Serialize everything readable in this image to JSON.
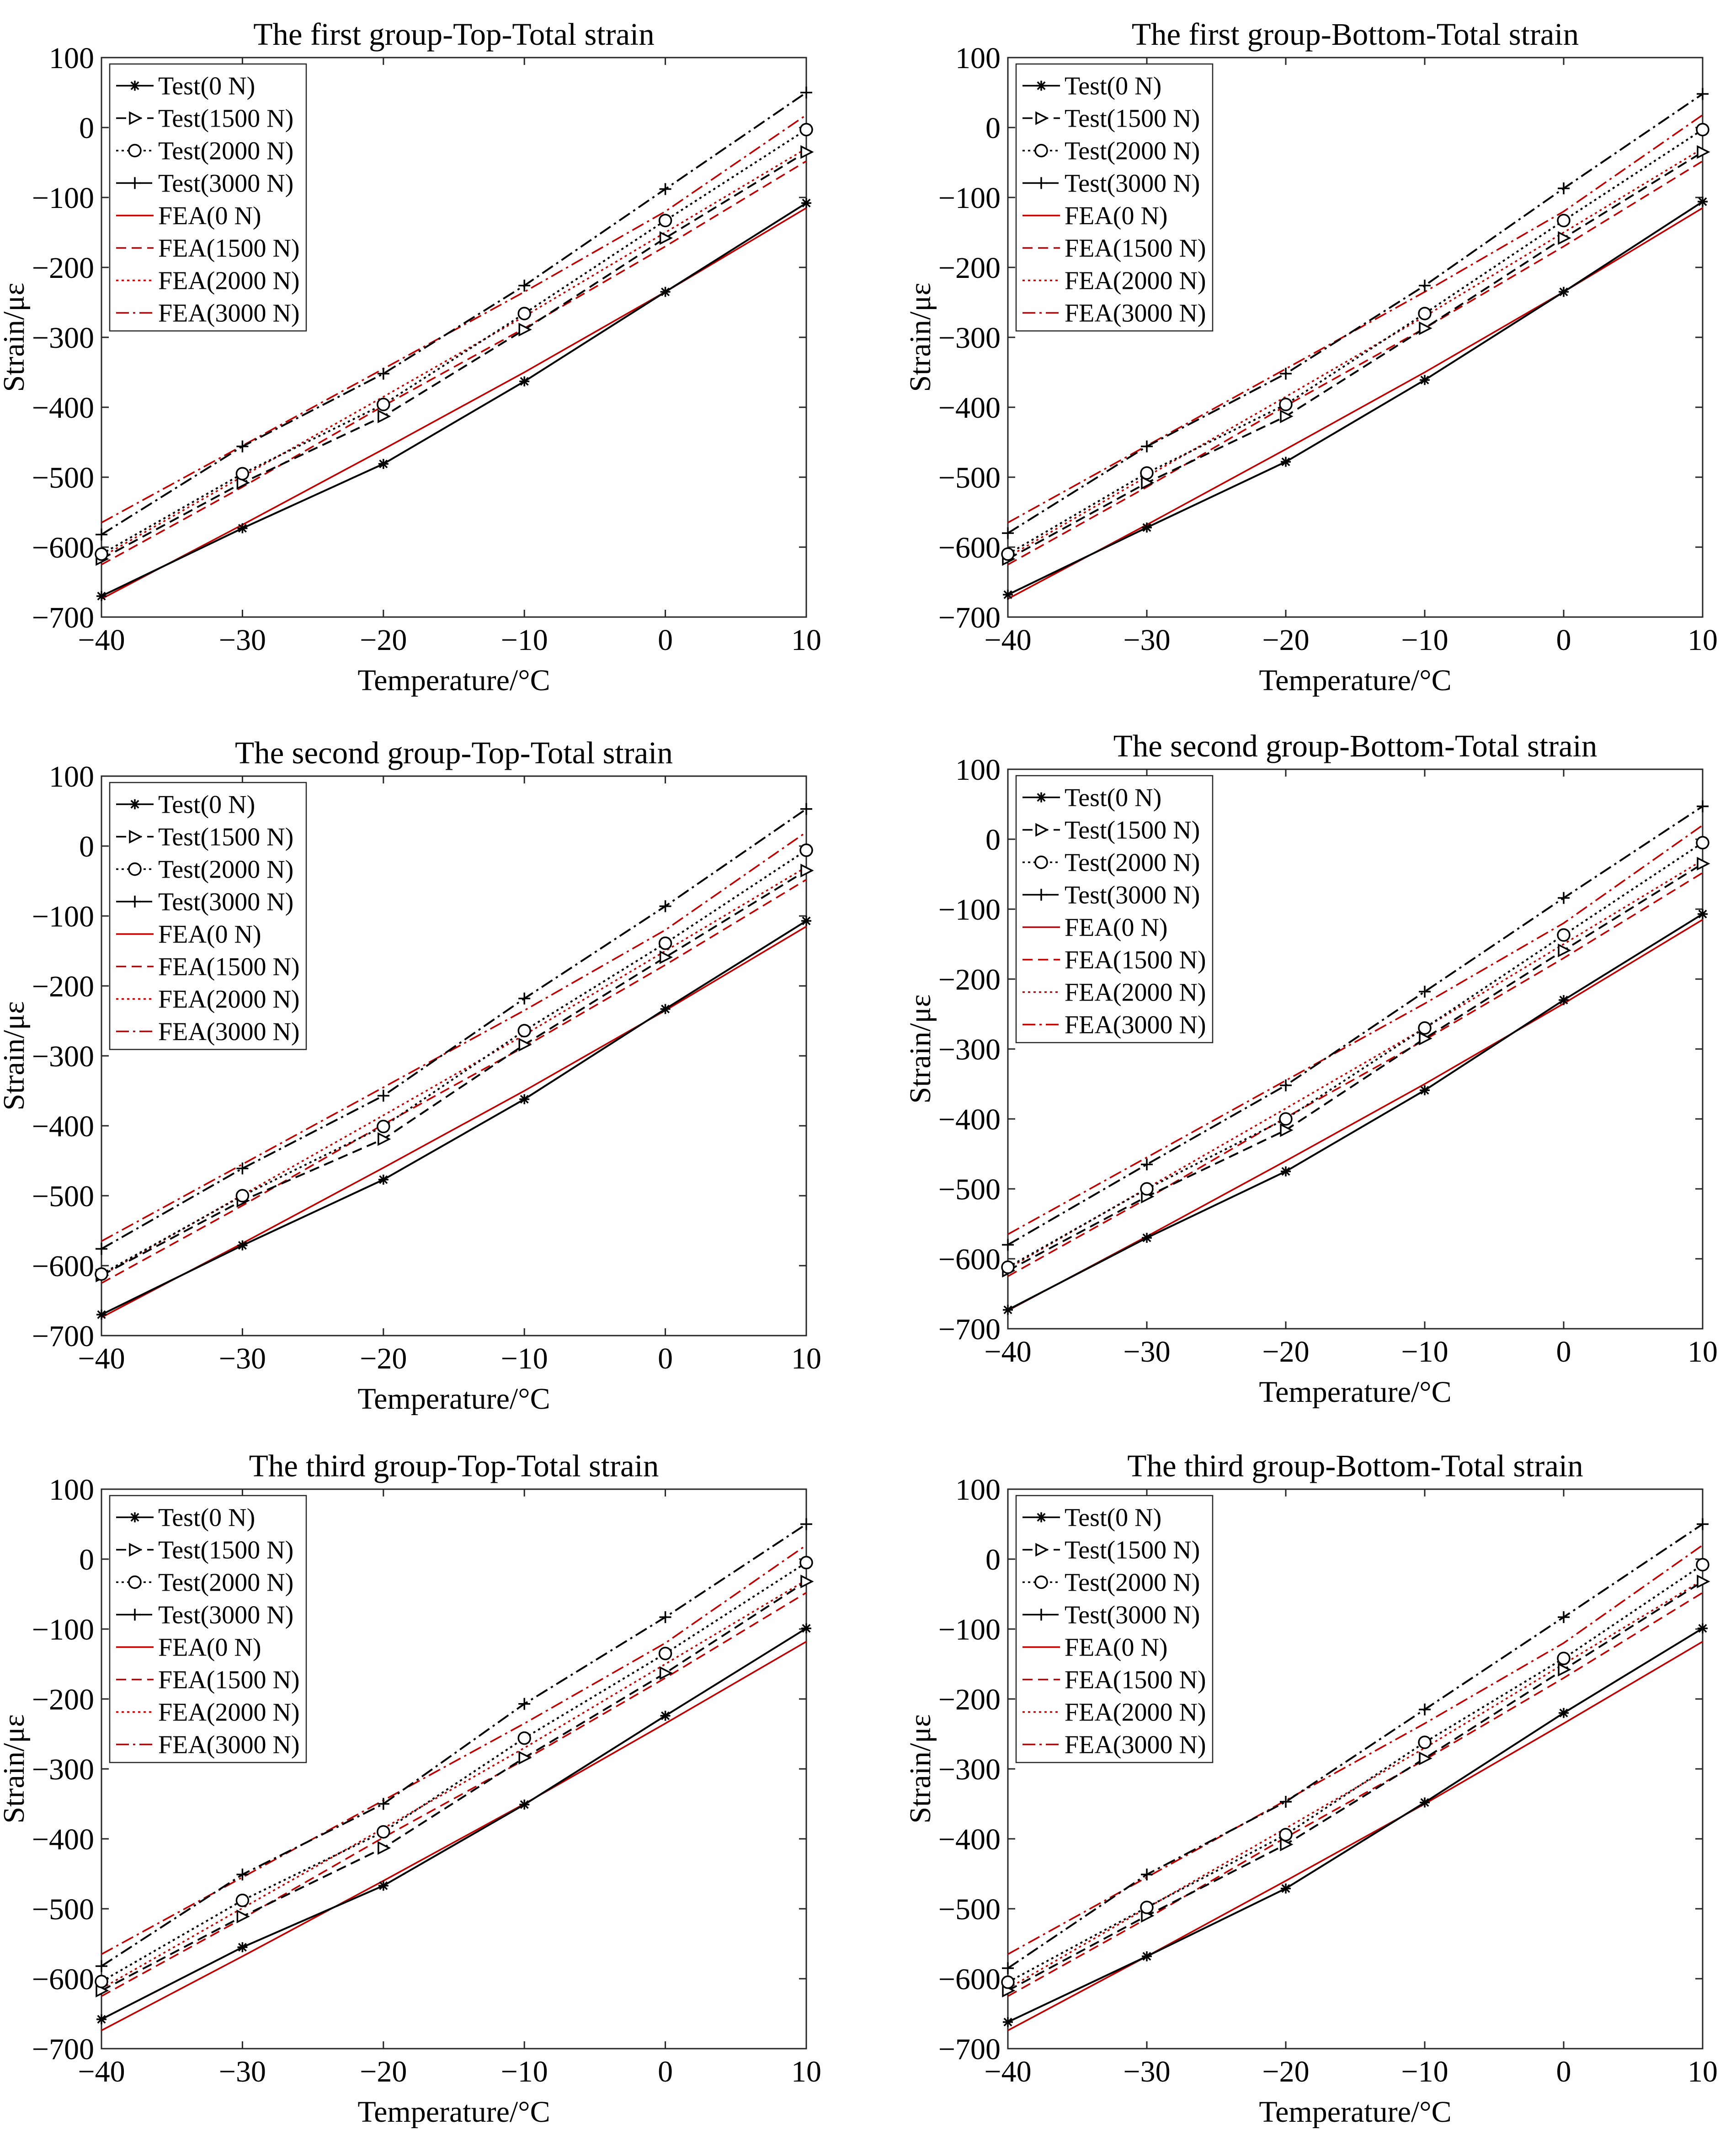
{
  "chart_data": [
    {
      "type": "line",
      "title": "The first group-Top-Total strain",
      "xlabel": "Temperature/°C",
      "ylabel": "Strain/με",
      "xlim": [
        -40,
        10
      ],
      "ylim": [
        -700,
        100
      ],
      "xticks": [
        "−40",
        "−30",
        "−20",
        "−10",
        "0",
        "10"
      ],
      "yticks": [
        "100",
        "0",
        "−100",
        "−200",
        "−300",
        "−400",
        "−500",
        "−600",
        "−700"
      ],
      "x": [
        -40,
        -30,
        -20,
        -10,
        0,
        10
      ],
      "legend_position": "top-left",
      "series": [
        {
          "name": "Test(0 N)",
          "values": [
            -670,
            -573,
            -481,
            -363,
            -235,
            -108
          ]
        },
        {
          "name": "Test(1500 N)",
          "values": [
            -617,
            -508,
            -413,
            -289,
            -158,
            -35
          ]
        },
        {
          "name": "Test(2000 N)",
          "values": [
            -610,
            -495,
            -396,
            -266,
            -133,
            -3
          ]
        },
        {
          "name": "Test(3000 N)",
          "values": [
            -582,
            -456,
            -352,
            -226,
            -88,
            50
          ]
        },
        {
          "name": "FEA(0 N)",
          "values": [
            -674,
            -568,
            -460,
            -350,
            -235,
            -115
          ]
        },
        {
          "name": "FEA(1500 N)",
          "values": [
            -625,
            -514,
            -398,
            -287,
            -170,
            -48
          ]
        },
        {
          "name": "FEA(2000 N)",
          "values": [
            -614,
            -499,
            -385,
            -270,
            -150,
            -30
          ]
        },
        {
          "name": "FEA(3000 N)",
          "values": [
            -565,
            -455,
            -345,
            -235,
            -120,
            18
          ]
        }
      ]
    },
    {
      "type": "line",
      "title": "The first group-Bottom-Total strain",
      "xlabel": "Temperature/°C",
      "ylabel": "Strain/με",
      "xlim": [
        -40,
        10
      ],
      "ylim": [
        -700,
        100
      ],
      "xticks": [
        "−40",
        "−30",
        "−20",
        "−10",
        "0",
        "10"
      ],
      "yticks": [
        "100",
        "0",
        "−100",
        "−200",
        "−300",
        "−400",
        "−500",
        "−600",
        "−700"
      ],
      "x": [
        -40,
        -30,
        -20,
        -10,
        0,
        10
      ],
      "legend_position": "top-left",
      "series": [
        {
          "name": "Test(0 N)",
          "values": [
            -668,
            -572,
            -478,
            -361,
            -235,
            -106
          ]
        },
        {
          "name": "Test(1500 N)",
          "values": [
            -617,
            -508,
            -413,
            -287,
            -158,
            -35
          ]
        },
        {
          "name": "Test(2000 N)",
          "values": [
            -610,
            -494,
            -396,
            -266,
            -133,
            -3
          ]
        },
        {
          "name": "Test(3000 N)",
          "values": [
            -580,
            -456,
            -352,
            -226,
            -87,
            48
          ]
        },
        {
          "name": "FEA(0 N)",
          "values": [
            -674,
            -568,
            -460,
            -350,
            -235,
            -115
          ]
        },
        {
          "name": "FEA(1500 N)",
          "values": [
            -625,
            -514,
            -398,
            -287,
            -170,
            -48
          ]
        },
        {
          "name": "FEA(2000 N)",
          "values": [
            -614,
            -499,
            -385,
            -270,
            -150,
            -30
          ]
        },
        {
          "name": "FEA(3000 N)",
          "values": [
            -565,
            -455,
            -345,
            -235,
            -120,
            18
          ]
        }
      ]
    },
    {
      "type": "line",
      "title": "The second group-Top-Total strain",
      "xlabel": "Temperature/°C",
      "ylabel": "Strain/με",
      "xlim": [
        -40,
        10
      ],
      "ylim": [
        -700,
        100
      ],
      "xticks": [
        "−40",
        "−30",
        "−20",
        "−10",
        "0",
        "10"
      ],
      "yticks": [
        "100",
        "0",
        "−100",
        "−200",
        "−300",
        "−400",
        "−500",
        "−600",
        "−700"
      ],
      "x": [
        -40,
        -30,
        -20,
        -10,
        0,
        10
      ],
      "legend_position": "top-left",
      "series": [
        {
          "name": "Test(0 N)",
          "values": [
            -670,
            -571,
            -477,
            -362,
            -233,
            -107
          ]
        },
        {
          "name": "Test(1500 N)",
          "values": [
            -614,
            -507,
            -419,
            -284,
            -159,
            -35
          ]
        },
        {
          "name": "Test(2000 N)",
          "values": [
            -612,
            -500,
            -401,
            -264,
            -139,
            -6
          ]
        },
        {
          "name": "Test(3000 N)",
          "values": [
            -576,
            -461,
            -357,
            -218,
            -86,
            53
          ]
        },
        {
          "name": "FEA(0 N)",
          "values": [
            -674,
            -568,
            -460,
            -350,
            -235,
            -115
          ]
        },
        {
          "name": "FEA(1500 N)",
          "values": [
            -625,
            -514,
            -398,
            -287,
            -170,
            -48
          ]
        },
        {
          "name": "FEA(2000 N)",
          "values": [
            -614,
            -499,
            -385,
            -270,
            -150,
            -30
          ]
        },
        {
          "name": "FEA(3000 N)",
          "values": [
            -565,
            -455,
            -345,
            -235,
            -120,
            20
          ]
        }
      ]
    },
    {
      "type": "line",
      "title": "The second group-Bottom-Total strain",
      "xlabel": "Temperature/°C",
      "ylabel": "Strain/με",
      "xlim": [
        -40,
        10
      ],
      "ylim": [
        -700,
        100
      ],
      "xticks": [
        "−40",
        "−30",
        "−20",
        "−10",
        "0",
        "10"
      ],
      "yticks": [
        "100",
        "0",
        "−100",
        "−200",
        "−300",
        "−400",
        "−500",
        "−600",
        "−700"
      ],
      "x": [
        -40,
        -30,
        -20,
        -10,
        0,
        10
      ],
      "legend_position": "top-left",
      "series": [
        {
          "name": "Test(0 N)",
          "values": [
            -673,
            -570,
            -475,
            -359,
            -230,
            -107
          ]
        },
        {
          "name": "Test(1500 N)",
          "values": [
            -617,
            -511,
            -416,
            -285,
            -159,
            -35
          ]
        },
        {
          "name": "Test(2000 N)",
          "values": [
            -612,
            -500,
            -400,
            -270,
            -137,
            -5
          ]
        },
        {
          "name": "Test(3000 N)",
          "values": [
            -580,
            -465,
            -352,
            -218,
            -84,
            47
          ]
        },
        {
          "name": "FEA(0 N)",
          "values": [
            -674,
            -568,
            -460,
            -350,
            -235,
            -115
          ]
        },
        {
          "name": "FEA(1500 N)",
          "values": [
            -625,
            -514,
            -398,
            -287,
            -170,
            -48
          ]
        },
        {
          "name": "FEA(2000 N)",
          "values": [
            -614,
            -499,
            -385,
            -270,
            -150,
            -30
          ]
        },
        {
          "name": "FEA(3000 N)",
          "values": [
            -565,
            -455,
            -345,
            -235,
            -120,
            20
          ]
        }
      ]
    },
    {
      "type": "line",
      "title": "The third group-Top-Total strain",
      "xlabel": "Temperature/°C",
      "ylabel": "Strain/με",
      "xlim": [
        -40,
        10
      ],
      "ylim": [
        -700,
        100
      ],
      "xticks": [
        "−40",
        "−30",
        "−20",
        "−10",
        "0",
        "10"
      ],
      "yticks": [
        "100",
        "0",
        "−100",
        "−200",
        "−300",
        "−400",
        "−500",
        "−600",
        "−700"
      ],
      "x": [
        -40,
        -30,
        -20,
        -10,
        0,
        10
      ],
      "legend_position": "top-left",
      "series": [
        {
          "name": "Test(0 N)",
          "values": [
            -658,
            -555,
            -467,
            -351,
            -224,
            -99
          ]
        },
        {
          "name": "Test(1500 N)",
          "values": [
            -617,
            -511,
            -413,
            -284,
            -163,
            -32
          ]
        },
        {
          "name": "Test(2000 N)",
          "values": [
            -604,
            -488,
            -390,
            -256,
            -135,
            -5
          ]
        },
        {
          "name": "Test(3000 N)",
          "values": [
            -582,
            -451,
            -350,
            -207,
            -83,
            50
          ]
        },
        {
          "name": "FEA(0 N)",
          "values": [
            -674,
            -568,
            -460,
            -350,
            -235,
            -118
          ]
        },
        {
          "name": "FEA(1500 N)",
          "values": [
            -625,
            -514,
            -398,
            -287,
            -170,
            -48
          ]
        },
        {
          "name": "FEA(2000 N)",
          "values": [
            -614,
            -499,
            -385,
            -270,
            -150,
            -30
          ]
        },
        {
          "name": "FEA(3000 N)",
          "values": [
            -565,
            -455,
            -345,
            -235,
            -120,
            20
          ]
        }
      ]
    },
    {
      "type": "line",
      "title": "The third group-Bottom-Total strain",
      "xlabel": "Temperature/°C",
      "ylabel": "Strain/με",
      "xlim": [
        -40,
        10
      ],
      "ylim": [
        -700,
        100
      ],
      "xticks": [
        "−40",
        "−30",
        "−20",
        "−10",
        "0",
        "10"
      ],
      "yticks": [
        "100",
        "0",
        "−100",
        "−200",
        "−300",
        "−400",
        "−500",
        "−600",
        "−700"
      ],
      "x": [
        -40,
        -30,
        -20,
        -10,
        0,
        10
      ],
      "legend_position": "top-left",
      "series": [
        {
          "name": "Test(0 N)",
          "values": [
            -662,
            -568,
            -471,
            -348,
            -220,
            -99
          ]
        },
        {
          "name": "Test(1500 N)",
          "values": [
            -617,
            -510,
            -408,
            -285,
            -158,
            -32
          ]
        },
        {
          "name": "Test(2000 N)",
          "values": [
            -605,
            -498,
            -394,
            -262,
            -142,
            -8
          ]
        },
        {
          "name": "Test(3000 N)",
          "values": [
            -585,
            -451,
            -347,
            -215,
            -83,
            50
          ]
        },
        {
          "name": "FEA(0 N)",
          "values": [
            -674,
            -568,
            -460,
            -350,
            -235,
            -118
          ]
        },
        {
          "name": "FEA(1500 N)",
          "values": [
            -625,
            -514,
            -398,
            -287,
            -170,
            -48
          ]
        },
        {
          "name": "FEA(2000 N)",
          "values": [
            -614,
            -499,
            -385,
            -270,
            -150,
            -30
          ]
        },
        {
          "name": "FEA(3000 N)",
          "values": [
            -565,
            -455,
            -345,
            -235,
            -120,
            20
          ]
        }
      ]
    }
  ],
  "styles": {
    "test_color": "#000000",
    "fea_color": "#c00000",
    "series_marker_names": [
      "asterisk",
      "triangle-right",
      "circle",
      "plus",
      "none",
      "none",
      "none",
      "none"
    ]
  }
}
